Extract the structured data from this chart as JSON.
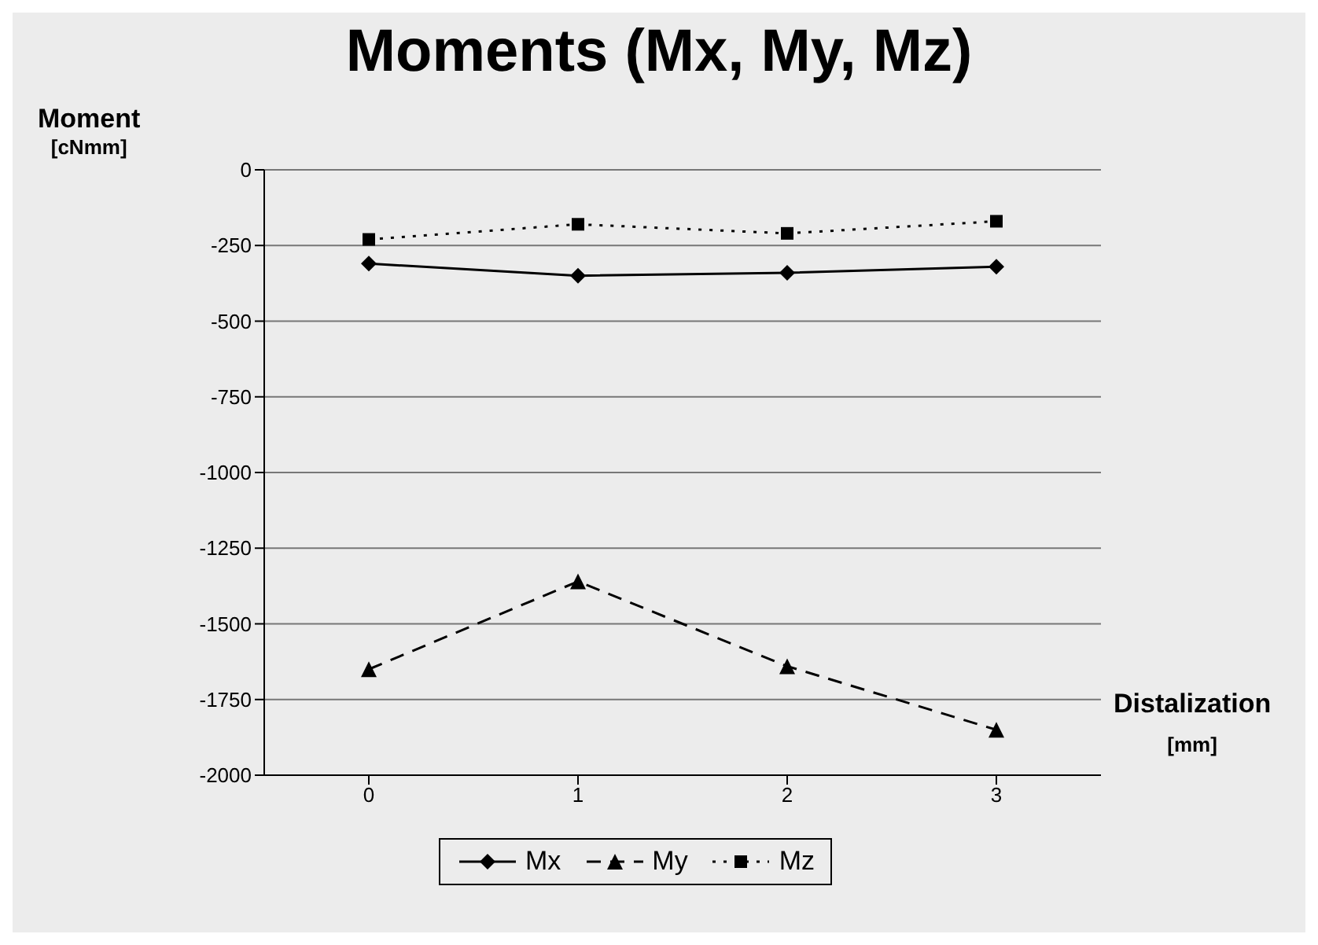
{
  "chart_data": {
    "type": "line",
    "title": "Moments (Mx, My, Mz)",
    "ylabel": "Moment [cNmm]",
    "xlabel": "Distalization [mm]",
    "categories": [
      "0",
      "1",
      "2",
      "3"
    ],
    "series": [
      {
        "name": "Mx",
        "color": "#000000",
        "values": [
          -310,
          -350,
          -340,
          -320
        ],
        "marker": "diamond",
        "line_style": "solid"
      },
      {
        "name": "My",
        "color": "#000000",
        "values": [
          -1650,
          -1360,
          -1640,
          -1850
        ],
        "marker": "triangle",
        "line_style": "dashed"
      },
      {
        "name": "Mz",
        "color": "#000000",
        "values": [
          -230,
          -180,
          -210,
          -170
        ],
        "marker": "square",
        "line_style": "dotted"
      }
    ],
    "ylim": [
      -2000,
      0
    ],
    "yticks": [
      -2000,
      -1750,
      -1500,
      -1250,
      -1000,
      -750,
      -500,
      -250,
      0
    ],
    "grid": "y",
    "legend": "bottom"
  }
}
